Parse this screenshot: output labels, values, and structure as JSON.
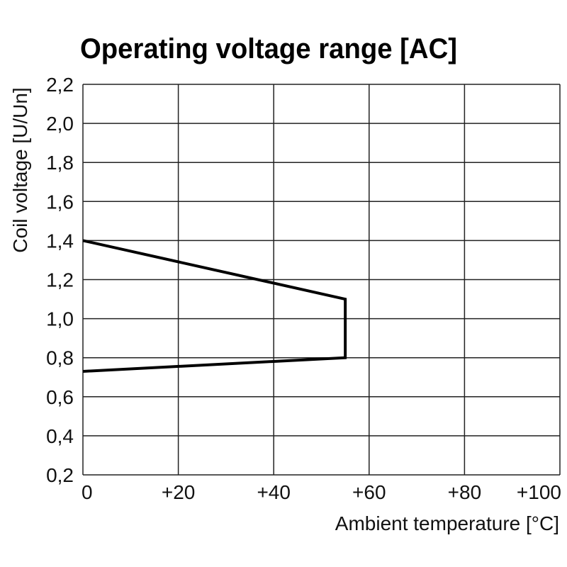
{
  "chart_data": {
    "type": "line",
    "title": "Operating voltage range [AC]",
    "xlabel": "Ambient temperature [°C]",
    "ylabel": "Coil voltage [U/Un]",
    "xlim": [
      0,
      100
    ],
    "ylim": [
      0.2,
      2.2
    ],
    "grid": true,
    "x_ticks": [
      0,
      20,
      40,
      60,
      80,
      100
    ],
    "x_tick_labels": [
      "0",
      "+20",
      "+40",
      "+60",
      "+80",
      "+100"
    ],
    "y_ticks": [
      0.2,
      0.4,
      0.6,
      0.8,
      1.0,
      1.2,
      1.4,
      1.6,
      1.8,
      2.0,
      2.2
    ],
    "y_tick_labels": [
      "0,2",
      "0,4",
      "0,6",
      "0,8",
      "1,0",
      "1,2",
      "1,4",
      "1,6",
      "1,8",
      "2,0",
      "2,2"
    ],
    "series": [
      {
        "x": [
          0,
          55,
          55,
          0
        ],
        "y": [
          1.4,
          1.1,
          0.8,
          0.73
        ],
        "color": "#000000"
      }
    ]
  }
}
